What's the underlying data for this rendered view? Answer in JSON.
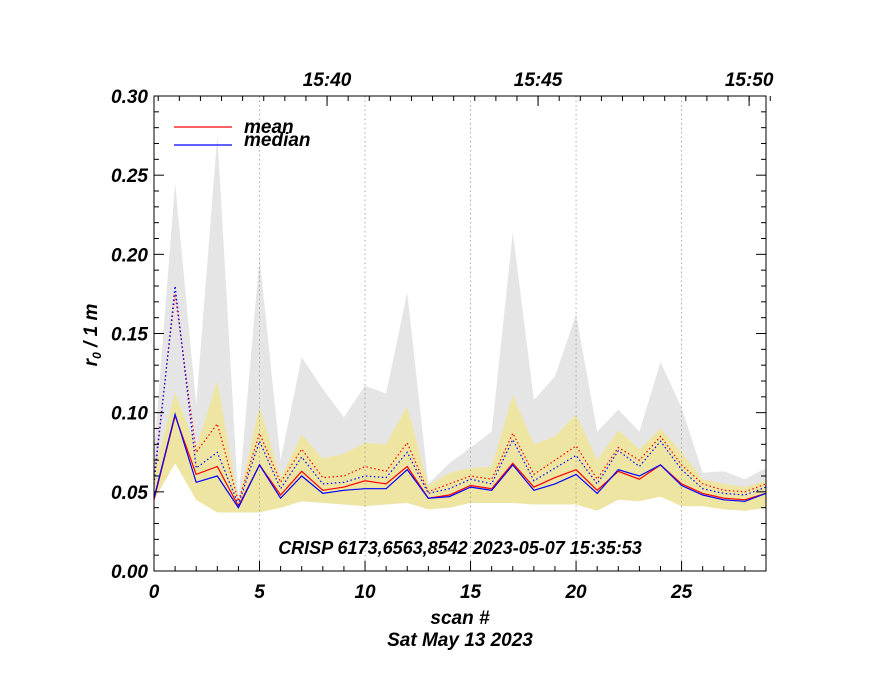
{
  "chart_data": {
    "type": "line",
    "annotation": "CRISP 6173,6563,8542 2023-05-07 15:35:53",
    "xlabel": "scan #",
    "ylabel_main": "r",
    "ylabel_sub": "0",
    "ylabel_rest": " / 1 m",
    "date_label": "Sat May 13 2023",
    "xlim": [
      0,
      29
    ],
    "ylim": [
      0,
      0.3
    ],
    "x_ticks": [
      0,
      5,
      10,
      15,
      20,
      25
    ],
    "x_tick_labels": [
      "0",
      "5",
      "10",
      "15",
      "20",
      "25"
    ],
    "y_ticks": [
      0,
      0.05,
      0.1,
      0.15,
      0.2,
      0.25,
      0.3
    ],
    "y_tick_labels": [
      "0.00",
      "0.05",
      "0.10",
      "0.15",
      "0.20",
      "0.25",
      "0.30"
    ],
    "top_axis": {
      "ticks": [
        {
          "scan": 8.2,
          "label": "15:40"
        },
        {
          "scan": 18.2,
          "label": "15:45"
        },
        {
          "scan": 28.2,
          "label": "15:50"
        }
      ],
      "dotted_lines": [
        5,
        10,
        15,
        20,
        25
      ]
    },
    "legend": {
      "position": "top-left",
      "entries": [
        {
          "name": "mean",
          "color": "#ff0000"
        },
        {
          "name": "median",
          "color": "#0000ff"
        }
      ]
    },
    "x": [
      0,
      1,
      2,
      3,
      4,
      5,
      6,
      7,
      8,
      9,
      10,
      11,
      12,
      13,
      14,
      15,
      16,
      17,
      18,
      19,
      20,
      21,
      22,
      23,
      24,
      25,
      26,
      27,
      28,
      29
    ],
    "series": [
      {
        "name": "mean",
        "color": "#ff0000",
        "style": "solid",
        "values": [
          0.045,
          0.098,
          0.061,
          0.066,
          0.041,
          0.067,
          0.048,
          0.063,
          0.051,
          0.053,
          0.057,
          0.055,
          0.066,
          0.046,
          0.048,
          0.054,
          0.052,
          0.068,
          0.053,
          0.059,
          0.064,
          0.051,
          0.063,
          0.058,
          0.067,
          0.055,
          0.049,
          0.046,
          0.045,
          0.049
        ]
      },
      {
        "name": "median",
        "color": "#0000ff",
        "style": "solid",
        "values": [
          0.046,
          0.099,
          0.056,
          0.06,
          0.04,
          0.067,
          0.046,
          0.06,
          0.049,
          0.051,
          0.052,
          0.052,
          0.064,
          0.046,
          0.047,
          0.053,
          0.051,
          0.067,
          0.051,
          0.055,
          0.061,
          0.049,
          0.064,
          0.06,
          0.067,
          0.054,
          0.048,
          0.045,
          0.044,
          0.049
        ]
      },
      {
        "color": "#ff0000",
        "style": "dotted",
        "values": [
          0.06,
          0.175,
          0.075,
          0.093,
          0.044,
          0.087,
          0.056,
          0.077,
          0.059,
          0.06,
          0.066,
          0.063,
          0.081,
          0.05,
          0.055,
          0.06,
          0.058,
          0.087,
          0.061,
          0.07,
          0.079,
          0.058,
          0.078,
          0.07,
          0.085,
          0.067,
          0.055,
          0.051,
          0.05,
          0.055
        ]
      },
      {
        "color": "#0000ff",
        "style": "dotted",
        "values": [
          0.055,
          0.18,
          0.065,
          0.075,
          0.042,
          0.082,
          0.052,
          0.072,
          0.055,
          0.056,
          0.06,
          0.059,
          0.075,
          0.049,
          0.052,
          0.058,
          0.055,
          0.083,
          0.057,
          0.065,
          0.073,
          0.055,
          0.076,
          0.066,
          0.082,
          0.064,
          0.052,
          0.049,
          0.048,
          0.053
        ]
      }
    ],
    "bands": [
      {
        "color": "#e5e5e5",
        "upper": [
          0.075,
          0.245,
          0.105,
          0.275,
          0.045,
          0.198,
          0.07,
          0.135,
          0.115,
          0.097,
          0.117,
          0.112,
          0.176,
          0.055,
          0.068,
          0.078,
          0.088,
          0.214,
          0.108,
          0.123,
          0.162,
          0.088,
          0.102,
          0.088,
          0.132,
          0.103,
          0.062,
          0.063,
          0.058,
          0.065
        ],
        "lower": [
          0.045,
          0.068,
          0.045,
          0.037,
          0.037,
          0.037,
          0.04,
          0.044,
          0.043,
          0.042,
          0.041,
          0.042,
          0.043,
          0.039,
          0.04,
          0.043,
          0.043,
          0.043,
          0.042,
          0.042,
          0.042,
          0.038,
          0.045,
          0.044,
          0.047,
          0.041,
          0.041,
          0.039,
          0.038,
          0.04
        ]
      },
      {
        "color": "#efe5a3",
        "upper": [
          0.062,
          0.113,
          0.078,
          0.12,
          0.044,
          0.104,
          0.059,
          0.086,
          0.071,
          0.074,
          0.081,
          0.08,
          0.104,
          0.054,
          0.062,
          0.065,
          0.066,
          0.111,
          0.08,
          0.085,
          0.099,
          0.07,
          0.089,
          0.077,
          0.09,
          0.075,
          0.058,
          0.055,
          0.053,
          0.057
        ],
        "lower": [
          0.045,
          0.068,
          0.045,
          0.037,
          0.037,
          0.037,
          0.04,
          0.044,
          0.043,
          0.042,
          0.041,
          0.042,
          0.043,
          0.039,
          0.04,
          0.043,
          0.043,
          0.043,
          0.042,
          0.042,
          0.042,
          0.038,
          0.045,
          0.044,
          0.047,
          0.041,
          0.041,
          0.039,
          0.038,
          0.04
        ]
      }
    ]
  }
}
